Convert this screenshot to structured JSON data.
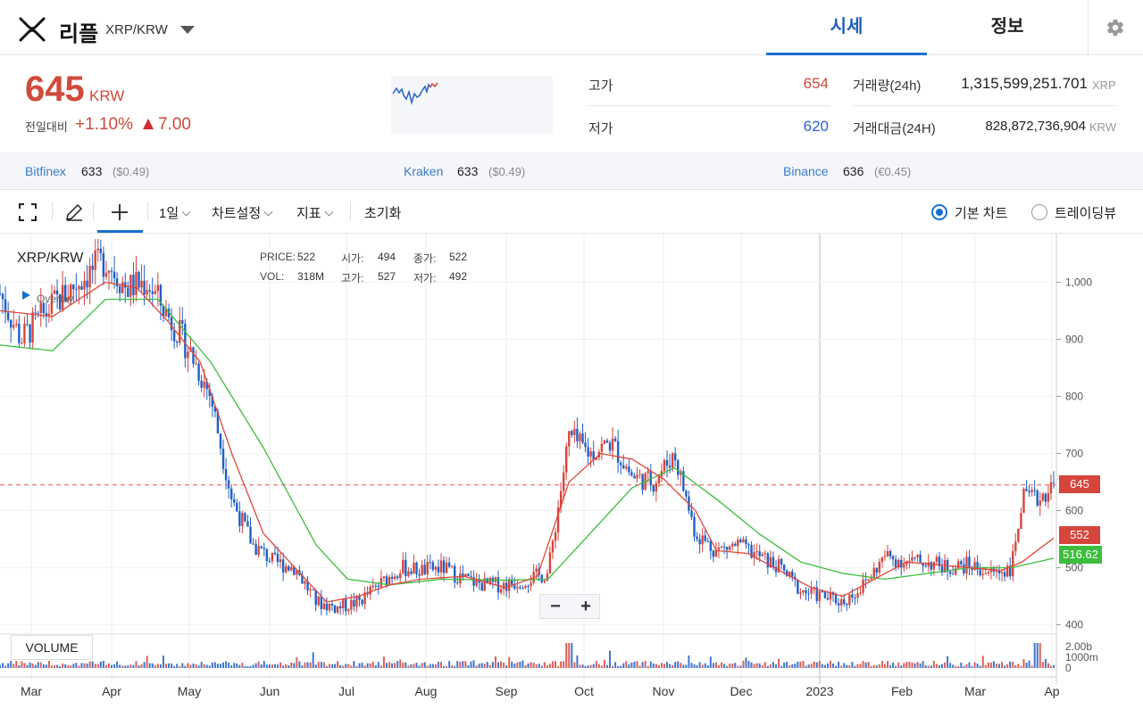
{
  "header": {
    "coin_name": "리플",
    "pair": "XRP/KRW",
    "tabs": [
      {
        "label": "시세",
        "active": true
      },
      {
        "label": "정보",
        "active": false
      }
    ],
    "settings_icon": "gear-icon",
    "logo_icon": "xrp-logo-icon"
  },
  "price": {
    "current": "645",
    "unit": "KRW",
    "change_label": "전일대비",
    "change_pct": "+1.10%",
    "change_abs": "7.00",
    "up_color": "#d04a3c"
  },
  "stats": {
    "high_label": "고가",
    "high_value": "654",
    "low_label": "저가",
    "low_value": "620",
    "volume_label": "거래량(24h)",
    "volume_value": "1,315,599,251.701",
    "volume_unit": "XRP",
    "turnover_label": "거래대금(24H)",
    "turnover_value": "828,872,736,904",
    "turnover_unit": "KRW"
  },
  "exchanges": [
    {
      "name": "Bitfinex",
      "price": "633",
      "sub": "($0.49)"
    },
    {
      "name": "Kraken",
      "price": "633",
      "sub": "($0.49)"
    },
    {
      "name": "Binance",
      "price": "636",
      "sub": "(€0.45)"
    }
  ],
  "toolbar": {
    "interval": "1일",
    "chart_settings": "차트설정",
    "indicators": "지표",
    "reset": "초기화",
    "basic_chart": "기본 차트",
    "tradingview": "트레이딩뷰"
  },
  "chart": {
    "pair": "XRP/KRW",
    "overlay": "Overlay",
    "legend": {
      "price_label": "PRICE:",
      "price": "522",
      "open_label": "시가:",
      "open": "494",
      "close_label": "종가:",
      "close": "522",
      "vol_label": "VOL:",
      "vol": "318M",
      "high_label": "고가:",
      "high": "527",
      "low_label": "저가:",
      "low": "492"
    },
    "volume_label": "VOLUME",
    "tags": {
      "last": "645",
      "ma_short": "552",
      "ma_long": "516.62"
    },
    "colors": {
      "up": "#d6453c",
      "down": "#1f5fc8",
      "ma_short": "#e0483b",
      "ma_long": "#3cbe3c",
      "last_line": "#e05a4f"
    }
  },
  "chart_data": {
    "type": "candlestick",
    "title": "XRP/KRW",
    "y_ticks": [
      "1,000",
      "900",
      "800",
      "700",
      "600",
      "500",
      "400"
    ],
    "ylim": [
      390,
      1085
    ],
    "volume_ticks": [
      "2.00b",
      "1000m",
      "0"
    ],
    "x_ticks": [
      "Mar",
      "Apr",
      "May",
      "Jun",
      "Jul",
      "Aug",
      "Sep",
      "Oct",
      "Nov",
      "Dec",
      "2023",
      "Feb",
      "Mar",
      "Ap"
    ],
    "price_path": [
      [
        0,
        980
      ],
      [
        0.02,
        900
      ],
      [
        0.05,
        960
      ],
      [
        0.08,
        1010
      ],
      [
        0.1,
        1040
      ],
      [
        0.12,
        990
      ],
      [
        0.14,
        1000
      ],
      [
        0.16,
        940
      ],
      [
        0.18,
        880
      ],
      [
        0.2,
        800
      ],
      [
        0.22,
        620
      ],
      [
        0.24,
        540
      ],
      [
        0.26,
        510
      ],
      [
        0.28,
        500
      ],
      [
        0.3,
        440
      ],
      [
        0.32,
        430
      ],
      [
        0.34,
        440
      ],
      [
        0.36,
        470
      ],
      [
        0.38,
        500
      ],
      [
        0.4,
        495
      ],
      [
        0.42,
        500
      ],
      [
        0.44,
        480
      ],
      [
        0.46,
        470
      ],
      [
        0.48,
        470
      ],
      [
        0.5,
        480
      ],
      [
        0.52,
        490
      ],
      [
        0.54,
        730
      ],
      [
        0.56,
        700
      ],
      [
        0.58,
        720
      ],
      [
        0.6,
        660
      ],
      [
        0.62,
        650
      ],
      [
        0.64,
        700
      ],
      [
        0.66,
        560
      ],
      [
        0.68,
        530
      ],
      [
        0.7,
        540
      ],
      [
        0.72,
        520
      ],
      [
        0.74,
        500
      ],
      [
        0.76,
        460
      ],
      [
        0.78,
        450
      ],
      [
        0.8,
        440
      ],
      [
        0.82,
        470
      ],
      [
        0.84,
        520
      ],
      [
        0.86,
        510
      ],
      [
        0.88,
        510
      ],
      [
        0.9,
        500
      ],
      [
        0.92,
        505
      ],
      [
        0.94,
        490
      ],
      [
        0.96,
        500
      ],
      [
        0.97,
        620
      ],
      [
        0.985,
        620
      ],
      [
        1.0,
        645
      ]
    ],
    "ma_short_path": [
      [
        0,
        950
      ],
      [
        0.05,
        940
      ],
      [
        0.1,
        1000
      ],
      [
        0.13,
        990
      ],
      [
        0.16,
        930
      ],
      [
        0.19,
        860
      ],
      [
        0.22,
        700
      ],
      [
        0.25,
        560
      ],
      [
        0.28,
        500
      ],
      [
        0.31,
        440
      ],
      [
        0.34,
        450
      ],
      [
        0.37,
        470
      ],
      [
        0.4,
        480
      ],
      [
        0.44,
        485
      ],
      [
        0.48,
        465
      ],
      [
        0.51,
        485
      ],
      [
        0.54,
        650
      ],
      [
        0.57,
        700
      ],
      [
        0.6,
        690
      ],
      [
        0.63,
        655
      ],
      [
        0.66,
        600
      ],
      [
        0.68,
        530
      ],
      [
        0.71,
        525
      ],
      [
        0.74,
        495
      ],
      [
        0.77,
        465
      ],
      [
        0.8,
        450
      ],
      [
        0.83,
        480
      ],
      [
        0.86,
        510
      ],
      [
        0.89,
        505
      ],
      [
        0.92,
        500
      ],
      [
        0.95,
        495
      ],
      [
        0.97,
        510
      ],
      [
        1.0,
        552
      ]
    ],
    "ma_long_path": [
      [
        0,
        890
      ],
      [
        0.05,
        880
      ],
      [
        0.1,
        970
      ],
      [
        0.15,
        970
      ],
      [
        0.2,
        860
      ],
      [
        0.25,
        710
      ],
      [
        0.3,
        540
      ],
      [
        0.33,
        480
      ],
      [
        0.37,
        470
      ],
      [
        0.42,
        480
      ],
      [
        0.48,
        478
      ],
      [
        0.52,
        480
      ],
      [
        0.56,
        560
      ],
      [
        0.6,
        640
      ],
      [
        0.64,
        675
      ],
      [
        0.68,
        620
      ],
      [
        0.72,
        560
      ],
      [
        0.76,
        510
      ],
      [
        0.8,
        490
      ],
      [
        0.84,
        480
      ],
      [
        0.88,
        490
      ],
      [
        0.92,
        500
      ],
      [
        0.96,
        500
      ],
      [
        1.0,
        516.62
      ]
    ]
  }
}
